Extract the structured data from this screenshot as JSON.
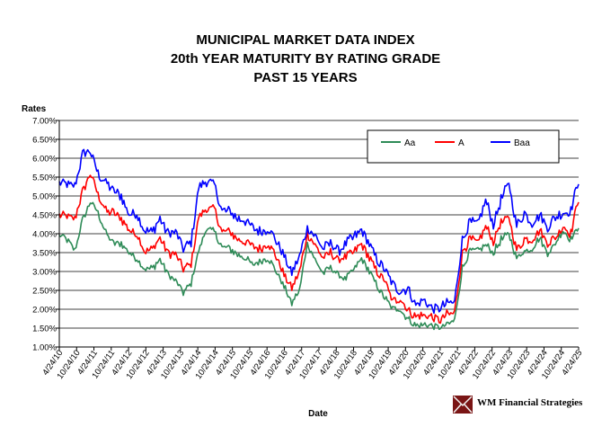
{
  "chart_data": {
    "type": "line",
    "title_lines": [
      "MUNICIPAL MARKET DATA INDEX",
      "20th YEAR MATURITY BY RATING GRADE",
      "PAST 15 YEARS"
    ],
    "ylabel": "Rates",
    "xlabel": "Date",
    "ylim": [
      1.0,
      7.0
    ],
    "yticks": [
      "1.00%",
      "1.50%",
      "2.00%",
      "2.50%",
      "3.00%",
      "3.50%",
      "4.00%",
      "4.50%",
      "5.00%",
      "5.50%",
      "6.00%",
      "6.50%",
      "7.00%"
    ],
    "xticks": [
      "4/24/10",
      "10/24/10",
      "4/24/11",
      "10/24/11",
      "4/24/12",
      "10/24/12",
      "4/24/13",
      "10/24/13",
      "4/24/14",
      "10/24/14",
      "4/24/15",
      "10/24/15",
      "4/24/16",
      "10/24/16",
      "4/24/17",
      "10/24/17",
      "4/24/18",
      "10/24/18",
      "4/24/19",
      "10/24/19",
      "4/24/20",
      "10/24/20",
      "4/24/21",
      "10/24/21",
      "4/24/22",
      "10/24/22",
      "4/24/23",
      "10/24/23",
      "4/24/24",
      "10/24/24",
      "4/24/25"
    ],
    "grid": "horizontal",
    "legend_position": "top-right",
    "series": [
      {
        "name": "Aa",
        "color": "#2e8b57",
        "values": [
          3.95,
          3.85,
          3.55,
          4.35,
          4.85,
          4.55,
          4.0,
          3.75,
          3.75,
          3.5,
          3.35,
          3.05,
          3.1,
          3.3,
          2.95,
          2.75,
          2.45,
          2.7,
          3.55,
          4.15,
          4.05,
          3.65,
          3.6,
          3.45,
          3.35,
          3.15,
          3.3,
          3.35,
          3.0,
          2.6,
          2.15,
          2.5,
          3.75,
          3.3,
          2.95,
          3.1,
          2.9,
          2.8,
          3.05,
          3.35,
          3.0,
          2.6,
          2.3,
          2.0,
          2.0,
          1.75,
          1.55,
          1.6,
          1.55,
          1.5,
          1.6,
          1.7,
          3.1,
          3.55,
          3.55,
          3.7,
          3.5,
          3.85,
          4.0,
          3.35,
          3.55,
          3.6,
          3.9,
          3.5,
          3.75,
          4.1,
          3.85,
          4.2
        ]
      },
      {
        "name": "A",
        "color": "#ff0000",
        "values": [
          4.5,
          4.45,
          4.4,
          5.1,
          5.6,
          5.05,
          4.6,
          4.55,
          4.4,
          4.1,
          4.0,
          3.55,
          3.6,
          3.9,
          3.5,
          3.45,
          3.05,
          3.2,
          4.45,
          4.65,
          4.65,
          4.05,
          4.05,
          3.85,
          3.8,
          3.65,
          3.6,
          3.75,
          3.4,
          2.9,
          2.55,
          3.0,
          4.0,
          3.7,
          3.35,
          3.5,
          3.3,
          3.4,
          3.5,
          3.75,
          3.35,
          3.0,
          2.75,
          2.2,
          2.3,
          1.95,
          1.8,
          1.85,
          1.8,
          1.7,
          1.85,
          1.9,
          3.5,
          3.85,
          3.75,
          4.2,
          3.8,
          4.3,
          4.45,
          3.55,
          3.85,
          3.85,
          4.1,
          3.75,
          3.9,
          4.2,
          4.0,
          4.95
        ]
      },
      {
        "name": "Baa",
        "color": "#0000ff",
        "values": [
          5.35,
          5.3,
          5.25,
          6.1,
          6.2,
          5.6,
          5.35,
          5.15,
          5.0,
          4.5,
          4.55,
          4.1,
          4.05,
          4.4,
          4.0,
          4.05,
          3.6,
          3.75,
          5.25,
          5.4,
          5.3,
          4.6,
          4.6,
          4.4,
          4.35,
          4.15,
          4.05,
          4.15,
          3.8,
          3.4,
          2.95,
          3.4,
          4.15,
          3.95,
          3.6,
          3.75,
          3.55,
          3.75,
          3.9,
          4.1,
          3.7,
          3.3,
          3.05,
          2.65,
          2.5,
          2.55,
          2.1,
          2.25,
          2.05,
          2.0,
          2.15,
          2.2,
          3.85,
          4.3,
          4.25,
          4.9,
          4.25,
          4.9,
          5.35,
          4.2,
          4.55,
          4.3,
          4.5,
          4.15,
          4.45,
          4.55,
          4.6,
          5.45
        ]
      }
    ]
  },
  "watermark": {
    "text": "WM Financial Strategies"
  }
}
